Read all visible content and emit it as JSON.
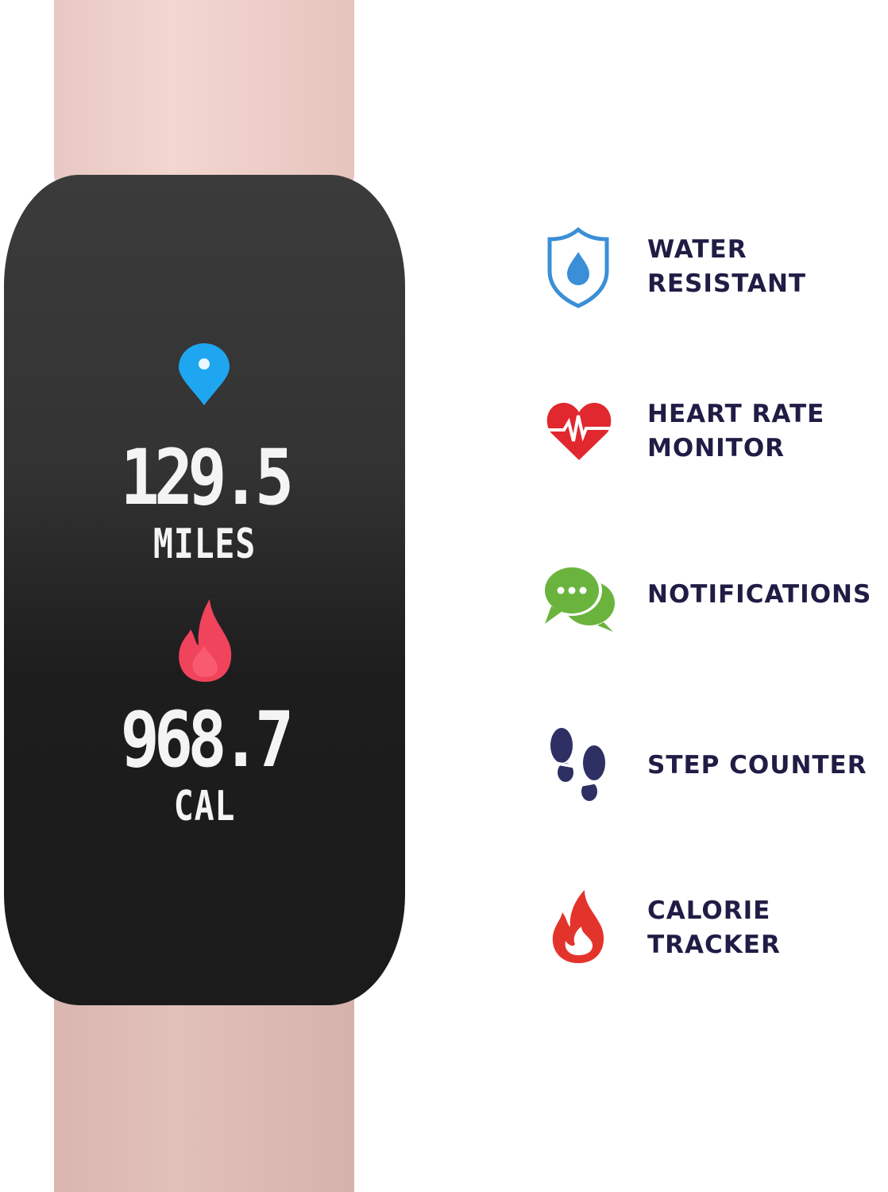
{
  "screen": {
    "distance_value": "129.5",
    "distance_unit": "MILES",
    "calories_value": "968.7",
    "calories_unit": "CAL"
  },
  "features": [
    {
      "line1": "WATER",
      "line2": "RESISTANT",
      "icon": "water-shield-icon",
      "color": "#3a8fd6"
    },
    {
      "line1": "HEART RATE",
      "line2": "MONITOR",
      "icon": "heart-rate-icon",
      "color": "#e0282e"
    },
    {
      "line1": "NOTIFICATIONS",
      "icon": "chat-bubbles-icon",
      "color": "#6ab43e"
    },
    {
      "line1": "STEP COUNTER",
      "icon": "footprints-icon",
      "color": "#2e2f63"
    },
    {
      "line1": "CALORIE",
      "line2": "TRACKER",
      "icon": "fire-icon",
      "color": "#e3342c"
    }
  ],
  "text_color": "#1f1d45",
  "band_color": "#f0d2cc"
}
